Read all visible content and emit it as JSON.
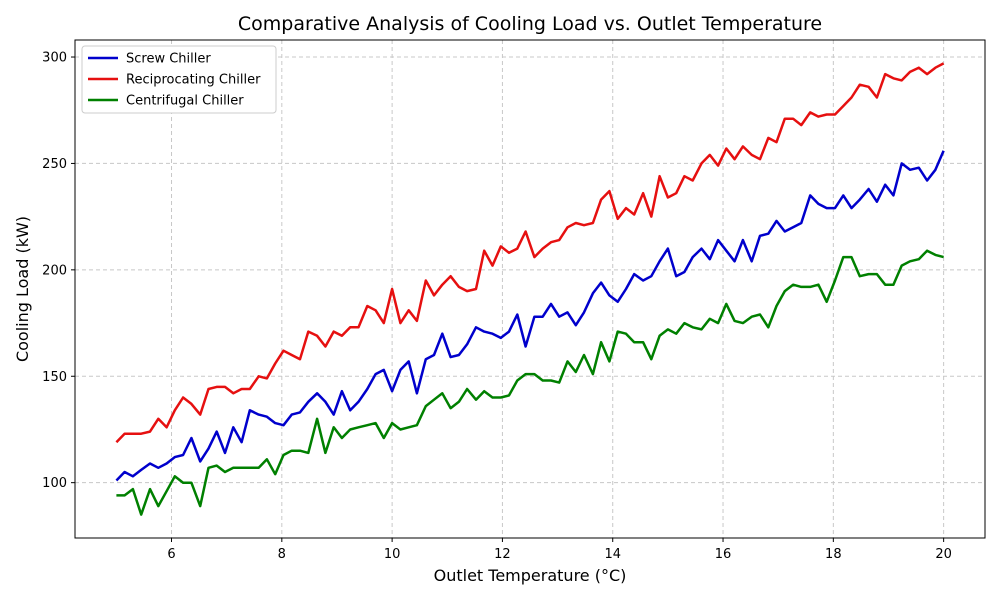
{
  "chart_data": {
    "type": "line",
    "title": "Comparative Analysis of Cooling Load vs. Outlet Temperature",
    "xlabel": "Outlet Temperature (°C)",
    "ylabel": "Cooling Load (kW)",
    "xlim": [
      4.25,
      20.75
    ],
    "ylim": [
      74,
      308
    ],
    "xticks": [
      6,
      8,
      10,
      12,
      14,
      16,
      18,
      20
    ],
    "yticks": [
      100,
      150,
      200,
      250,
      300
    ],
    "grid": true,
    "legend_position": "upper-left",
    "x": [
      5.0,
      5.15,
      5.3,
      5.45,
      5.61,
      5.76,
      5.91,
      6.06,
      6.21,
      6.36,
      6.52,
      6.67,
      6.82,
      6.97,
      7.12,
      7.27,
      7.42,
      7.58,
      7.73,
      7.88,
      8.03,
      8.18,
      8.33,
      8.48,
      8.64,
      8.79,
      8.94,
      9.09,
      9.24,
      9.39,
      9.55,
      9.7,
      9.85,
      10.0,
      10.15,
      10.3,
      10.45,
      10.61,
      10.76,
      10.91,
      11.06,
      11.21,
      11.36,
      11.52,
      11.67,
      11.82,
      11.97,
      12.12,
      12.27,
      12.42,
      12.58,
      12.73,
      12.88,
      13.03,
      13.18,
      13.33,
      13.48,
      13.64,
      13.79,
      13.94,
      14.09,
      14.24,
      14.39,
      14.55,
      14.7,
      14.85,
      15.0,
      15.15,
      15.3,
      15.45,
      15.61,
      15.76,
      15.91,
      16.06,
      16.21,
      16.36,
      16.52,
      16.67,
      16.82,
      16.97,
      17.12,
      17.27,
      17.42,
      17.58,
      17.73,
      17.88,
      18.03,
      18.18,
      18.33,
      18.48,
      18.64,
      18.79,
      18.94,
      19.09,
      19.24,
      19.39,
      19.55,
      19.7,
      19.85,
      20.0
    ],
    "series": [
      {
        "name": "Screw Chiller",
        "color": "#0000cc",
        "values": [
          101,
          105,
          103,
          106,
          109,
          107,
          109,
          112,
          113,
          121,
          110,
          116,
          124,
          114,
          126,
          119,
          134,
          132,
          131,
          128,
          127,
          132,
          133,
          138,
          142,
          138,
          132,
          143,
          134,
          138,
          144,
          151,
          153,
          143,
          153,
          157,
          142,
          158,
          160,
          170,
          159,
          160,
          165,
          173,
          171,
          170,
          168,
          171,
          179,
          164,
          178,
          178,
          184,
          178,
          180,
          174,
          180,
          189,
          194,
          188,
          185,
          191,
          198,
          195,
          197,
          204,
          210,
          197,
          199,
          206,
          210,
          205,
          214,
          209,
          204,
          214,
          204,
          216,
          217,
          223,
          218,
          220,
          222,
          235,
          231,
          229,
          229,
          235,
          229,
          233,
          238,
          232,
          240,
          235,
          250,
          247,
          248,
          242,
          247,
          256
        ]
      },
      {
        "name": "Reciprocating Chiller",
        "color": "#e61010",
        "values": [
          119,
          123,
          123,
          123,
          124,
          130,
          126,
          134,
          140,
          137,
          132,
          144,
          145,
          145,
          142,
          144,
          144,
          150,
          149,
          156,
          162,
          160,
          158,
          171,
          169,
          164,
          171,
          169,
          173,
          173,
          183,
          181,
          175,
          191,
          175,
          181,
          176,
          195,
          188,
          193,
          197,
          192,
          190,
          191,
          209,
          202,
          211,
          208,
          210,
          218,
          206,
          210,
          213,
          214,
          220,
          222,
          221,
          222,
          233,
          237,
          224,
          229,
          226,
          236,
          225,
          244,
          234,
          236,
          244,
          242,
          250,
          254,
          249,
          257,
          252,
          258,
          254,
          252,
          262,
          260,
          271,
          271,
          268,
          274,
          272,
          273,
          273,
          277,
          281,
          287,
          286,
          281,
          292,
          290,
          289,
          293,
          295,
          292,
          295,
          297
        ]
      },
      {
        "name": "Centrifugal Chiller",
        "color": "#008000",
        "values": [
          94,
          94,
          97,
          85,
          97,
          89,
          96,
          103,
          100,
          100,
          89,
          107,
          108,
          105,
          107,
          107,
          107,
          107,
          111,
          104,
          113,
          115,
          115,
          114,
          130,
          114,
          126,
          121,
          125,
          126,
          127,
          128,
          121,
          128,
          125,
          126,
          127,
          136,
          139,
          142,
          135,
          138,
          144,
          139,
          143,
          140,
          140,
          141,
          148,
          151,
          151,
          148,
          148,
          147,
          157,
          152,
          160,
          151,
          166,
          157,
          171,
          170,
          166,
          166,
          158,
          169,
          172,
          170,
          175,
          173,
          172,
          177,
          175,
          184,
          176,
          175,
          178,
          179,
          173,
          183,
          190,
          193,
          192,
          192,
          193,
          185,
          195,
          206,
          206,
          197,
          198,
          198,
          193,
          193,
          202,
          204,
          205,
          209,
          207,
          206
        ]
      }
    ]
  }
}
